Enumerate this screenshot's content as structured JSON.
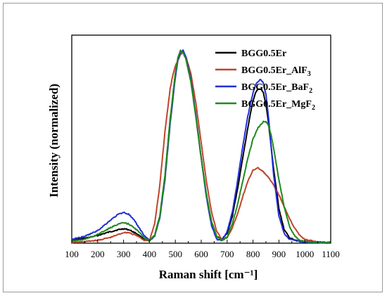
{
  "chart_data": {
    "type": "line",
    "xlabel": "Raman shift [cm⁻¹]",
    "ylabel": "Intensity (normalized)",
    "xlim": [
      100,
      1100
    ],
    "xticks": [
      100,
      200,
      300,
      400,
      500,
      600,
      700,
      800,
      900,
      1000,
      1100
    ],
    "ylim": [
      0,
      1.05
    ],
    "y_tick_labels_shown": false,
    "grid": false,
    "legend_placement": "top-right",
    "series": [
      {
        "name": "BGG0.5Er",
        "legend_base": "BGG0.5Er",
        "legend_sub": "",
        "color": "#000000",
        "x": [
          100,
          150,
          200,
          250,
          280,
          300,
          320,
          350,
          380,
          400,
          420,
          440,
          460,
          480,
          500,
          510,
          520,
          530,
          540,
          560,
          580,
          600,
          620,
          640,
          660,
          680,
          700,
          720,
          740,
          760,
          780,
          800,
          810,
          820,
          830,
          840,
          850,
          860,
          870,
          880,
          900,
          920,
          940,
          960,
          1000,
          1050,
          1100
        ],
        "y": [
          0.015,
          0.025,
          0.04,
          0.06,
          0.07,
          0.075,
          0.07,
          0.05,
          0.02,
          0.01,
          0.04,
          0.14,
          0.35,
          0.64,
          0.88,
          0.96,
          1.0,
          0.99,
          0.96,
          0.84,
          0.65,
          0.44,
          0.25,
          0.11,
          0.035,
          0.02,
          0.05,
          0.14,
          0.28,
          0.44,
          0.6,
          0.74,
          0.78,
          0.8,
          0.8,
          0.78,
          0.72,
          0.62,
          0.5,
          0.38,
          0.18,
          0.07,
          0.03,
          0.015,
          0.008,
          0.005,
          0.003
        ]
      },
      {
        "name": "BGG0.5Er_AlF3",
        "legend_base": "BGG0.5Er_AlF",
        "legend_sub": "3",
        "color": "#c0442c",
        "x": [
          100,
          150,
          200,
          250,
          280,
          300,
          320,
          350,
          380,
          400,
          420,
          440,
          460,
          480,
          490,
          500,
          510,
          520,
          530,
          540,
          560,
          580,
          600,
          620,
          640,
          660,
          680,
          700,
          720,
          740,
          760,
          780,
          800,
          820,
          840,
          860,
          880,
          900,
          920,
          940,
          960,
          980,
          1000,
          1050,
          1100
        ],
        "y": [
          0.003,
          0.008,
          0.015,
          0.03,
          0.045,
          0.055,
          0.055,
          0.04,
          0.015,
          0.015,
          0.1,
          0.3,
          0.58,
          0.8,
          0.87,
          0.92,
          0.95,
          0.98,
          0.99,
          0.97,
          0.88,
          0.72,
          0.52,
          0.32,
          0.16,
          0.06,
          0.02,
          0.03,
          0.08,
          0.15,
          0.24,
          0.32,
          0.38,
          0.39,
          0.37,
          0.34,
          0.3,
          0.25,
          0.19,
          0.13,
          0.08,
          0.04,
          0.02,
          0.006,
          0.002
        ]
      },
      {
        "name": "BGG0.5Er_BaF2",
        "legend_base": "BGG0.5Er_BaF",
        "legend_sub": "2",
        "color": "#1f2fd6",
        "x": [
          100,
          150,
          200,
          250,
          280,
          300,
          320,
          340,
          360,
          380,
          400,
          420,
          440,
          460,
          480,
          500,
          510,
          520,
          530,
          540,
          560,
          580,
          600,
          620,
          640,
          660,
          680,
          700,
          720,
          740,
          760,
          780,
          800,
          810,
          820,
          830,
          840,
          850,
          860,
          870,
          880,
          900,
          920,
          940,
          1000,
          1100
        ],
        "y": [
          0.02,
          0.035,
          0.065,
          0.12,
          0.15,
          0.16,
          0.15,
          0.12,
          0.08,
          0.04,
          0.015,
          0.035,
          0.13,
          0.33,
          0.62,
          0.86,
          0.95,
          0.99,
          1.0,
          0.97,
          0.85,
          0.66,
          0.44,
          0.24,
          0.09,
          0.02,
          0.015,
          0.06,
          0.16,
          0.32,
          0.5,
          0.66,
          0.78,
          0.82,
          0.84,
          0.85,
          0.83,
          0.77,
          0.65,
          0.5,
          0.35,
          0.14,
          0.05,
          0.02,
          0.005,
          0.002
        ]
      },
      {
        "name": "BGG0.5Er_MgF2",
        "legend_base": "BGG0.5Er_MgF",
        "legend_sub": "2",
        "color": "#1e8a1e",
        "x": [
          100,
          150,
          200,
          250,
          280,
          300,
          320,
          350,
          380,
          400,
          420,
          440,
          460,
          480,
          500,
          510,
          520,
          530,
          540,
          560,
          580,
          600,
          620,
          640,
          660,
          680,
          700,
          720,
          740,
          760,
          780,
          800,
          820,
          840,
          850,
          860,
          870,
          880,
          900,
          920,
          940,
          960,
          980,
          1000,
          1050,
          1100
        ],
        "y": [
          0.01,
          0.02,
          0.045,
          0.08,
          0.1,
          0.105,
          0.1,
          0.07,
          0.03,
          0.012,
          0.04,
          0.14,
          0.35,
          0.64,
          0.88,
          0.96,
          1.0,
          0.99,
          0.96,
          0.84,
          0.65,
          0.44,
          0.25,
          0.11,
          0.035,
          0.015,
          0.03,
          0.1,
          0.2,
          0.32,
          0.44,
          0.54,
          0.6,
          0.63,
          0.63,
          0.61,
          0.56,
          0.49,
          0.33,
          0.19,
          0.09,
          0.04,
          0.015,
          0.008,
          0.004,
          0.002
        ]
      }
    ]
  }
}
